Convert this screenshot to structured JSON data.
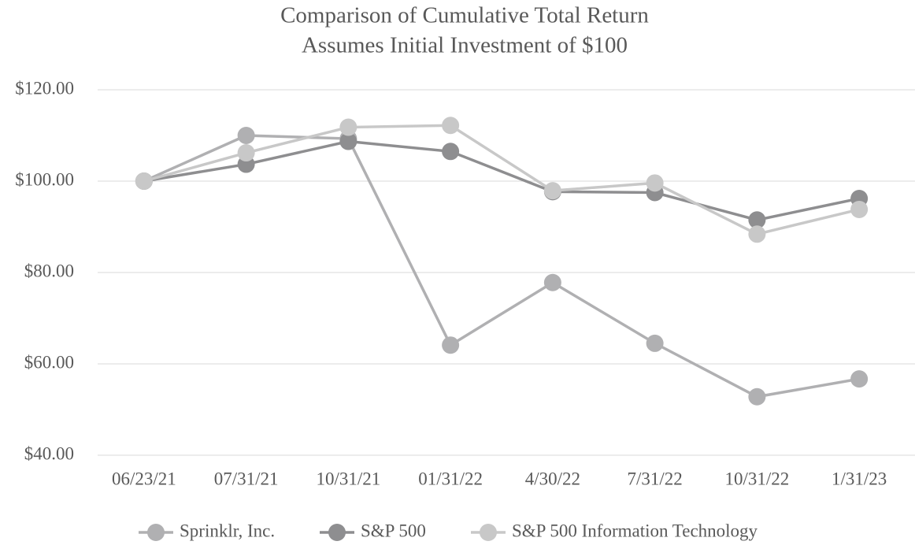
{
  "chart_data": {
    "type": "line",
    "title": "Comparison of Cumulative Total Return",
    "subtitle": "Assumes Initial Investment of $100",
    "categories": [
      "06/23/21",
      "07/31/21",
      "10/31/21",
      "01/31/22",
      "4/30/22",
      "7/31/22",
      "10/31/22",
      "1/31/23"
    ],
    "series": [
      {
        "name": "Sprinklr, Inc.",
        "color": "#b0b0b2",
        "values": [
          100,
          110,
          109.3,
          64.1,
          77.8,
          64.5,
          52.8,
          56.7
        ]
      },
      {
        "name": "S&P 500",
        "color": "#8e8e90",
        "values": [
          100,
          103.7,
          108.7,
          106.5,
          97.7,
          97.5,
          91.5,
          96.2
        ]
      },
      {
        "name": "S&P 500 Information Technology",
        "color": "#c8c8c8",
        "values": [
          100,
          106.2,
          111.8,
          112.2,
          97.9,
          99.6,
          88.4,
          93.8
        ]
      }
    ],
    "ylim": [
      40,
      120
    ],
    "yticks": [
      {
        "value": 40,
        "label": "$40.00"
      },
      {
        "value": 60,
        "label": "$60.00"
      },
      {
        "value": 80,
        "label": "$80.00"
      },
      {
        "value": 100,
        "label": "$100.00"
      },
      {
        "value": 120,
        "label": "$120.00"
      }
    ],
    "grid": true,
    "legend": "bottom"
  }
}
